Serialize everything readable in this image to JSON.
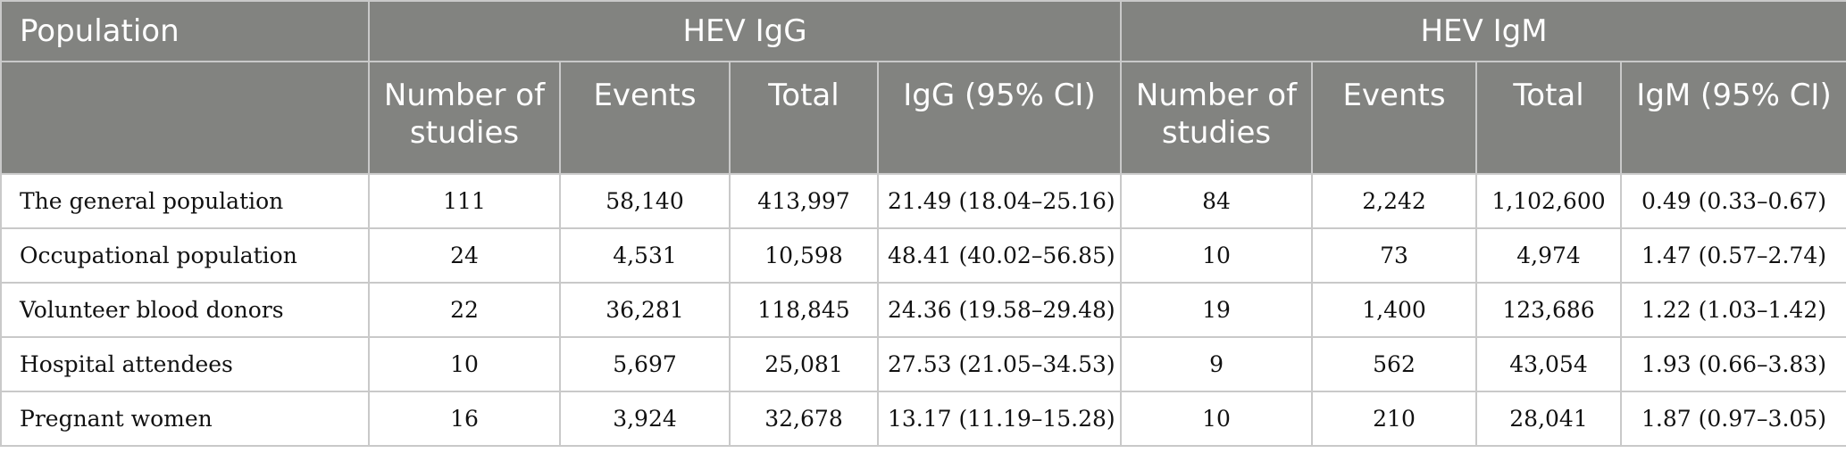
{
  "header": {
    "population": "Population",
    "group_igg": "HEV IgG",
    "group_igm": "HEV IgM",
    "igg_cols": [
      "Number of studies",
      "Events",
      "Total",
      "IgG (95% CI)"
    ],
    "igm_cols": [
      "Number of studies",
      "Events",
      "Total",
      "IgM (95% CI)"
    ]
  },
  "rows": [
    {
      "label": "The general population",
      "igg": [
        "111",
        "58,140",
        "413,997",
        "21.49 (18.04–25.16)"
      ],
      "igm": [
        "84",
        "2,242",
        "1,102,600",
        "0.49 (0.33–0.67)"
      ]
    },
    {
      "label": "Occupational population",
      "igg": [
        "24",
        "4,531",
        "10,598",
        "48.41 (40.02–56.85)"
      ],
      "igm": [
        "10",
        "73",
        "4,974",
        "1.47 (0.57–2.74)"
      ]
    },
    {
      "label": "Volunteer blood donors",
      "igg": [
        "22",
        "36,281",
        "118,845",
        "24.36 (19.58–29.48)"
      ],
      "igm": [
        "19",
        "1,400",
        "123,686",
        "1.22 (1.03–1.42)"
      ]
    },
    {
      "label": "Hospital attendees",
      "igg": [
        "10",
        "5,697",
        "25,081",
        "27.53 (21.05–34.53)"
      ],
      "igm": [
        "9",
        "562",
        "43,054",
        "1.93 (0.66–3.83)"
      ]
    },
    {
      "label": "Pregnant women",
      "igg": [
        "16",
        "3,924",
        "32,678",
        "13.17 (11.19–15.28)"
      ],
      "igm": [
        "10",
        "210",
        "28,041",
        "1.87 (0.97–3.05)"
      ]
    }
  ]
}
